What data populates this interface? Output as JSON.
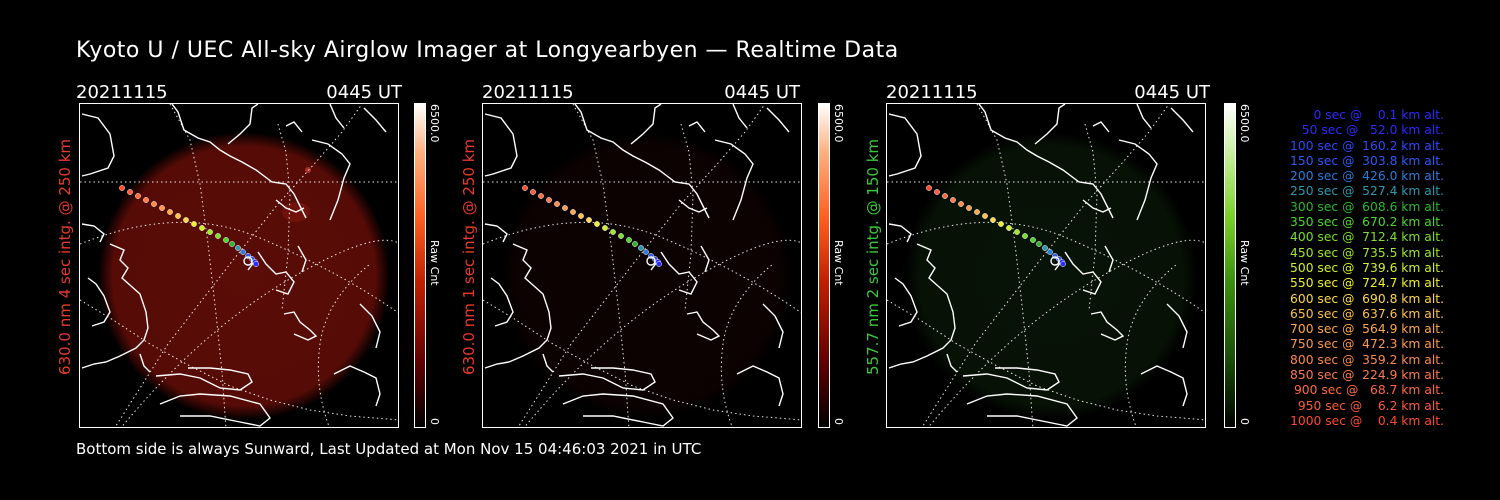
{
  "title": "Kyoto U / UEC All-sky Airglow Imager at Longyearbyen — Realtime Data",
  "footer": "Bottom side is always Sunward, Last Updated at Mon Nov 15 04:46:03 2021 in UTC",
  "panels": [
    {
      "date": "20211115",
      "time": "0445 UT",
      "label": "630.0 nm 4 sec intg. @ 250 km",
      "label_color": "#e83a2a",
      "cbar_max": "6500.0",
      "cbar_min": "0",
      "cbar_unit": "Raw Cnt",
      "glow_color": "#6a0e08",
      "glow_level": 0.85
    },
    {
      "date": "20211115",
      "time": "0445 UT",
      "label": "630.0 nm 1 sec intg. @ 250 km",
      "label_color": "#e83a2a",
      "cbar_max": "6500.0",
      "cbar_min": "0",
      "cbar_unit": "Raw Cnt",
      "glow_color": "#2a0504",
      "glow_level": 0.3
    },
    {
      "date": "20211115",
      "time": "0445 UT",
      "label": "557.7 nm 2 sec intg. @ 150 km",
      "label_color": "#3cc83c",
      "cbar_max": "6500.0",
      "cbar_min": "0",
      "cbar_unit": "Raw Cnt",
      "glow_color": "#12300e",
      "glow_level": 0.4
    }
  ],
  "legend": [
    {
      "text": "   0 sec @    0.1 km alt.",
      "color": "#2a2aff"
    },
    {
      "text": "  50 sec @   52.0 km alt.",
      "color": "#2a2aff"
    },
    {
      "text": " 100 sec @  160.2 km alt.",
      "color": "#2a4aff"
    },
    {
      "text": " 150 sec @  303.8 km alt.",
      "color": "#2a5aff"
    },
    {
      "text": " 200 sec @  426.0 km alt.",
      "color": "#2a7ae0"
    },
    {
      "text": " 250 sec @  527.4 km alt.",
      "color": "#2a9ab0"
    },
    {
      "text": " 300 sec @  608.6 km alt.",
      "color": "#2ab82a"
    },
    {
      "text": " 350 sec @  670.2 km alt.",
      "color": "#4ad82a"
    },
    {
      "text": " 400 sec @  712.4 km alt.",
      "color": "#7ae02a"
    },
    {
      "text": " 450 sec @  735.5 km alt.",
      "color": "#a0e82a"
    },
    {
      "text": " 500 sec @  739.6 km alt.",
      "color": "#d0f02a"
    },
    {
      "text": " 550 sec @  724.7 km alt.",
      "color": "#f0f02a"
    },
    {
      "text": " 600 sec @  690.8 km alt.",
      "color": "#ffd84a"
    },
    {
      "text": " 650 sec @  637.6 km alt.",
      "color": "#ffc04a"
    },
    {
      "text": " 700 sec @  564.9 km alt.",
      "color": "#ffa84a"
    },
    {
      "text": " 750 sec @  472.3 km alt.",
      "color": "#ff984a"
    },
    {
      "text": " 800 sec @  359.2 km alt.",
      "color": "#ff8a4a"
    },
    {
      "text": " 850 sec @  224.9 km alt.",
      "color": "#ff7a4a"
    },
    {
      "text": " 900 sec @   68.7 km alt.",
      "color": "#ff6a40"
    },
    {
      "text": " 950 sec @    6.2 km alt.",
      "color": "#ff5a3a"
    },
    {
      "text": "1000 sec @    0.4 km alt.",
      "color": "#ff4a30"
    }
  ]
}
